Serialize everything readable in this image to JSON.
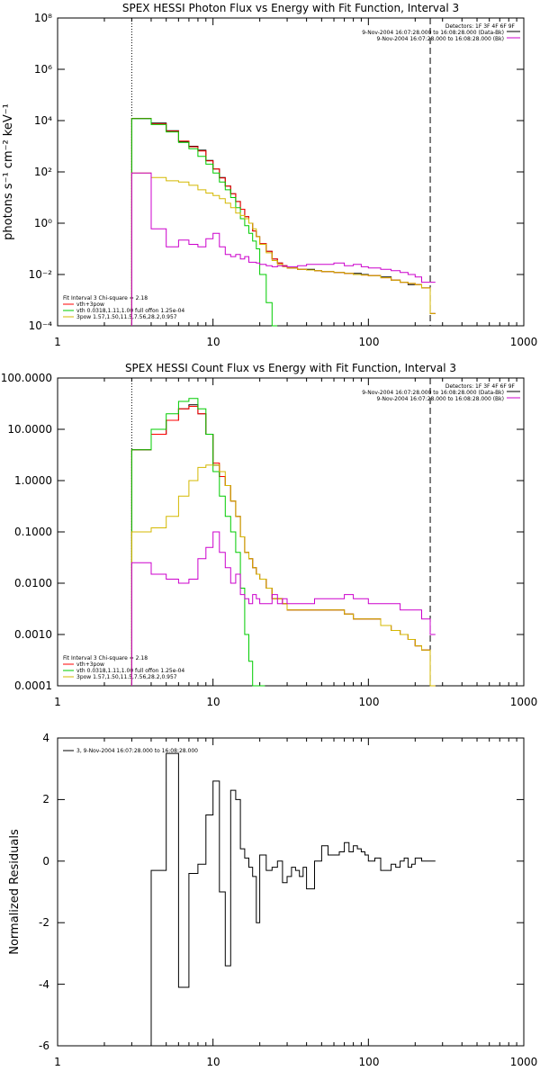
{
  "chart_data": [
    {
      "type": "line",
      "title": "SPEX HESSI Photon Flux vs Energy with Fit Function, Interval 3",
      "xlabel": "",
      "ylabel": "photons s⁻¹ cm⁻² keV⁻¹",
      "xscale": "log",
      "yscale": "log",
      "xlim": [
        1,
        1000
      ],
      "ylim": [
        0.0001,
        100000000
      ],
      "x_ticks": [
        "1",
        "10",
        "100",
        "1000"
      ],
      "y_ticks": [
        "10⁻⁴",
        "10⁻²",
        "10⁰",
        "10²",
        "10⁴",
        "10⁶",
        "10⁸"
      ],
      "header": [
        "Detectors: 1F 3F 4F 6F 9F",
        "9-Nov-2004 16:07:28.000 to 16:08:28.000 (Data-Bk)",
        "9-Nov-2004 16:07:28.000 to 16:08:28.000 (Bk)"
      ],
      "legend_title": "Fit Interval 3   Chi-square = 2.18",
      "legend": [
        "vth+3pow",
        "vth 0.0318,1.11,1.00  full offon 1.25e-04",
        "3pow 1.57,1.50,11.5,7.56,28.2,0.957"
      ],
      "vlines": [
        {
          "x": 3,
          "style": "dotted"
        },
        {
          "x": 250,
          "style": "dashed"
        }
      ],
      "series": [
        {
          "name": "Data-Bk",
          "color": "#000000",
          "step": true,
          "x": [
            3,
            4,
            5,
            6,
            7,
            8,
            9,
            10,
            11,
            12,
            13,
            14,
            15,
            16,
            17,
            18,
            19,
            20,
            22,
            24,
            26,
            28,
            30,
            35,
            40,
            45,
            50,
            60,
            70,
            80,
            90,
            100,
            120,
            140,
            160,
            180,
            200,
            220,
            250
          ],
          "y": [
            12000,
            8000,
            4000,
            1500,
            1000,
            700,
            280,
            130,
            60,
            28,
            14,
            7,
            3.5,
            1.8,
            1,
            0.5,
            0.3,
            0.16,
            0.08,
            0.04,
            0.028,
            0.022,
            0.018,
            0.016,
            0.016,
            0.014,
            0.013,
            0.012,
            0.011,
            0.011,
            0.01,
            0.009,
            0.008,
            0.006,
            0.005,
            0.004,
            0.004,
            0.003,
            0.0003
          ]
        },
        {
          "name": "vth+3pow",
          "color": "#ff0000",
          "step": true,
          "x": [
            3,
            4,
            5,
            6,
            7,
            8,
            9,
            10,
            11,
            12,
            13,
            14,
            15,
            16,
            17,
            18,
            19,
            20,
            22,
            24,
            26,
            28,
            30,
            35,
            40,
            45,
            50,
            60,
            70,
            80,
            90,
            100,
            120,
            140,
            160,
            180,
            200,
            220,
            250
          ],
          "y": [
            12200,
            7500,
            3900,
            1600,
            950,
            650,
            270,
            130,
            58,
            28,
            14,
            7,
            3.5,
            1.8,
            1,
            0.5,
            0.3,
            0.16,
            0.08,
            0.04,
            0.028,
            0.022,
            0.018,
            0.016,
            0.015,
            0.014,
            0.013,
            0.012,
            0.011,
            0.01,
            0.0095,
            0.009,
            0.0075,
            0.006,
            0.005,
            0.0045,
            0.004,
            0.003,
            0.0003
          ]
        },
        {
          "name": "vth",
          "color": "#00cc00",
          "step": true,
          "x": [
            3,
            4,
            5,
            6,
            7,
            8,
            9,
            10,
            11,
            12,
            13,
            14,
            15,
            16,
            17,
            18,
            19,
            20,
            22,
            24
          ],
          "y": [
            12000,
            7000,
            3600,
            1400,
            800,
            400,
            200,
            90,
            40,
            20,
            10,
            4,
            1.5,
            0.8,
            0.4,
            0.2,
            0.1,
            0.01,
            0.0008,
            0.0001
          ]
        },
        {
          "name": "3pow",
          "color": "#d4b800",
          "step": true,
          "x": [
            3,
            4,
            5,
            6,
            7,
            8,
            9,
            10,
            11,
            12,
            13,
            14,
            15,
            16,
            17,
            18,
            19,
            20,
            22,
            24,
            26,
            28,
            30,
            35,
            40,
            45,
            50,
            60,
            70,
            80,
            90,
            100,
            120,
            140,
            160,
            180,
            200,
            220,
            250
          ],
          "y": [
            90,
            60,
            45,
            40,
            30,
            20,
            15,
            12,
            9,
            6,
            4,
            2.5,
            2,
            1.5,
            1,
            0.6,
            0.3,
            0.15,
            0.07,
            0.035,
            0.025,
            0.02,
            0.018,
            0.016,
            0.015,
            0.014,
            0.013,
            0.012,
            0.011,
            0.01,
            0.0095,
            0.009,
            0.0075,
            0.006,
            0.005,
            0.0045,
            0.004,
            0.003,
            0.0003
          ]
        },
        {
          "name": "Bk",
          "color": "#cc00cc",
          "step": true,
          "x": [
            3,
            4,
            5,
            6,
            7,
            8,
            9,
            10,
            11,
            12,
            13,
            14,
            15,
            16,
            17,
            18,
            19,
            20,
            22,
            24,
            26,
            28,
            30,
            35,
            40,
            45,
            50,
            60,
            70,
            80,
            90,
            100,
            120,
            140,
            160,
            180,
            200,
            220,
            250
          ],
          "y": [
            90,
            0.6,
            0.12,
            0.22,
            0.15,
            0.12,
            0.25,
            0.4,
            0.12,
            0.06,
            0.05,
            0.06,
            0.04,
            0.05,
            0.03,
            0.03,
            0.028,
            0.025,
            0.022,
            0.02,
            0.022,
            0.021,
            0.02,
            0.022,
            0.025,
            0.025,
            0.025,
            0.028,
            0.022,
            0.025,
            0.02,
            0.018,
            0.016,
            0.014,
            0.012,
            0.01,
            0.008,
            0.005,
            0.005
          ]
        }
      ]
    },
    {
      "type": "line",
      "title": "SPEX HESSI Count Flux vs Energy with Fit Function, Interval 3",
      "xlabel": "",
      "ylabel": "",
      "xscale": "log",
      "yscale": "log",
      "xlim": [
        1,
        1000
      ],
      "ylim": [
        0.0001,
        100
      ],
      "x_ticks": [
        "1",
        "10",
        "100",
        "1000"
      ],
      "y_ticks": [
        "0.0001",
        "0.0010",
        "0.0100",
        "0.1000",
        "1.0000",
        "10.0000",
        "100.0000"
      ],
      "header": [
        "Detectors: 1F 3F 4F 6F 9F",
        "9-Nov-2004 16:07:28.000 to 16:08:28.000 (Data-Bk)",
        "9-Nov-2004 16:07:28.000 to 16:08:28.000 (Bk)"
      ],
      "legend_title": "Fit Interval 3   Chi-square = 2.18",
      "legend": [
        "vth+3pow",
        "vth 0.0318,1.11,1.00  full offon 1.25e-04",
        "3pow 1.57,1.50,11.5,7.56,28.2,0.957"
      ],
      "vlines": [
        {
          "x": 3,
          "style": "dotted"
        },
        {
          "x": 250,
          "style": "dashed"
        }
      ],
      "series": [
        {
          "name": "Data-Bk",
          "color": "#000000",
          "step": true,
          "x": [
            3,
            4,
            5,
            6,
            7,
            8,
            9,
            10,
            11,
            12,
            13,
            14,
            15,
            16,
            17,
            18,
            19,
            20,
            22,
            24,
            26,
            28,
            30,
            35,
            40,
            45,
            50,
            60,
            70,
            80,
            90,
            100,
            120,
            140,
            160,
            180,
            200,
            220,
            250
          ],
          "y": [
            4,
            8,
            15,
            25,
            30,
            20,
            8,
            2,
            1.2,
            0.8,
            0.4,
            0.2,
            0.08,
            0.04,
            0.03,
            0.02,
            0.015,
            0.012,
            0.008,
            0.005,
            0.005,
            0.004,
            0.003,
            0.003,
            0.003,
            0.003,
            0.003,
            0.003,
            0.0025,
            0.002,
            0.002,
            0.002,
            0.0015,
            0.0012,
            0.001,
            0.0008,
            0.0006,
            0.0005,
            0.0001
          ]
        },
        {
          "name": "vth+3pow",
          "color": "#ff0000",
          "step": true,
          "x": [
            3,
            4,
            5,
            6,
            7,
            8,
            9,
            10,
            11,
            12,
            13,
            14,
            15,
            16,
            17,
            18,
            19,
            20,
            22,
            24,
            26,
            28,
            30,
            35,
            40,
            45,
            50,
            60,
            70,
            80,
            90,
            100,
            120,
            140,
            160,
            180,
            200,
            220,
            250
          ],
          "y": [
            4,
            8,
            15,
            25,
            28,
            20,
            8,
            2.2,
            1.2,
            0.8,
            0.4,
            0.2,
            0.08,
            0.04,
            0.03,
            0.02,
            0.015,
            0.012,
            0.008,
            0.005,
            0.005,
            0.004,
            0.003,
            0.003,
            0.003,
            0.003,
            0.003,
            0.003,
            0.0025,
            0.002,
            0.002,
            0.002,
            0.0015,
            0.0012,
            0.001,
            0.0008,
            0.0006,
            0.0005,
            0.0001
          ]
        },
        {
          "name": "vth",
          "color": "#00cc00",
          "step": true,
          "x": [
            3,
            4,
            5,
            6,
            7,
            8,
            9,
            10,
            11,
            12,
            13,
            14,
            15,
            16,
            17,
            18,
            19,
            20
          ],
          "y": [
            4,
            10,
            20,
            35,
            40,
            25,
            8,
            1.5,
            0.5,
            0.2,
            0.1,
            0.04,
            0.008,
            0.001,
            0.0003,
            0.0001,
            0.0001,
            0.0001
          ]
        },
        {
          "name": "3pow",
          "color": "#d4b800",
          "step": true,
          "x": [
            3,
            4,
            5,
            6,
            7,
            8,
            9,
            10,
            11,
            12,
            13,
            14,
            15,
            16,
            17,
            18,
            19,
            20,
            22,
            24,
            26,
            28,
            30,
            35,
            40,
            45,
            50,
            60,
            70,
            80,
            90,
            100,
            120,
            140,
            160,
            180,
            200,
            220,
            250
          ],
          "y": [
            0.1,
            0.12,
            0.2,
            0.5,
            1,
            1.8,
            2,
            2,
            1.5,
            0.8,
            0.4,
            0.2,
            0.08,
            0.04,
            0.03,
            0.02,
            0.015,
            0.012,
            0.008,
            0.005,
            0.005,
            0.004,
            0.003,
            0.003,
            0.003,
            0.003,
            0.003,
            0.003,
            0.0025,
            0.002,
            0.002,
            0.002,
            0.0015,
            0.0012,
            0.001,
            0.0008,
            0.0006,
            0.0005,
            0.0001
          ]
        },
        {
          "name": "Bk",
          "color": "#cc00cc",
          "step": true,
          "x": [
            3,
            4,
            5,
            6,
            7,
            8,
            9,
            10,
            11,
            12,
            13,
            14,
            15,
            16,
            17,
            18,
            19,
            20,
            22,
            24,
            26,
            28,
            30,
            35,
            40,
            45,
            50,
            60,
            70,
            80,
            90,
            100,
            120,
            140,
            160,
            180,
            200,
            220,
            250
          ],
          "y": [
            0.025,
            0.015,
            0.012,
            0.01,
            0.012,
            0.03,
            0.05,
            0.1,
            0.04,
            0.02,
            0.01,
            0.015,
            0.006,
            0.005,
            0.004,
            0.006,
            0.005,
            0.004,
            0.004,
            0.006,
            0.004,
            0.005,
            0.004,
            0.004,
            0.004,
            0.005,
            0.005,
            0.005,
            0.006,
            0.005,
            0.005,
            0.004,
            0.004,
            0.004,
            0.003,
            0.003,
            0.003,
            0.002,
            0.001
          ]
        }
      ]
    },
    {
      "type": "line",
      "title": "",
      "xlabel": "",
      "ylabel": "Normalized Residuals",
      "xscale": "log",
      "yscale": "linear",
      "xlim": [
        1,
        1000
      ],
      "ylim": [
        -6,
        4
      ],
      "x_ticks": [
        "1",
        "10",
        "100",
        "1000"
      ],
      "y_ticks": [
        "-6",
        "-4",
        "-2",
        "0",
        "2",
        "4"
      ],
      "legend": [
        "3,  9-Nov-2004 16:07:28.000 to 16:08:28.000"
      ],
      "series": [
        {
          "name": "3,  9-Nov-2004 16:07:28.000 to 16:08:28.000",
          "color": "#000000",
          "step": true,
          "x": [
            3,
            4,
            5,
            6,
            7,
            8,
            9,
            10,
            11,
            12,
            13,
            14,
            15,
            16,
            17,
            18,
            19,
            20,
            22,
            24,
            26,
            28,
            30,
            32,
            34,
            36,
            38,
            40,
            45,
            50,
            55,
            60,
            65,
            70,
            75,
            80,
            85,
            90,
            95,
            100,
            110,
            120,
            130,
            140,
            150,
            160,
            170,
            180,
            190,
            200,
            220,
            250
          ],
          "y": [
            -6,
            -0.3,
            3.5,
            -4.1,
            -0.4,
            -0.1,
            1.5,
            2.6,
            -1,
            -3.4,
            2.3,
            2,
            0.4,
            0.1,
            -0.2,
            -0.5,
            -2,
            0.2,
            -0.3,
            -0.2,
            0,
            -0.7,
            -0.5,
            -0.2,
            -0.3,
            -0.5,
            -0.2,
            -0.9,
            0,
            0.5,
            0.2,
            0.2,
            0.3,
            0.6,
            0.3,
            0.5,
            0.4,
            0.3,
            0.2,
            0,
            0.1,
            -0.3,
            -0.3,
            -0.1,
            -0.2,
            0,
            0.1,
            -0.2,
            -0.1,
            0.1,
            0,
            0
          ]
        }
      ]
    }
  ]
}
